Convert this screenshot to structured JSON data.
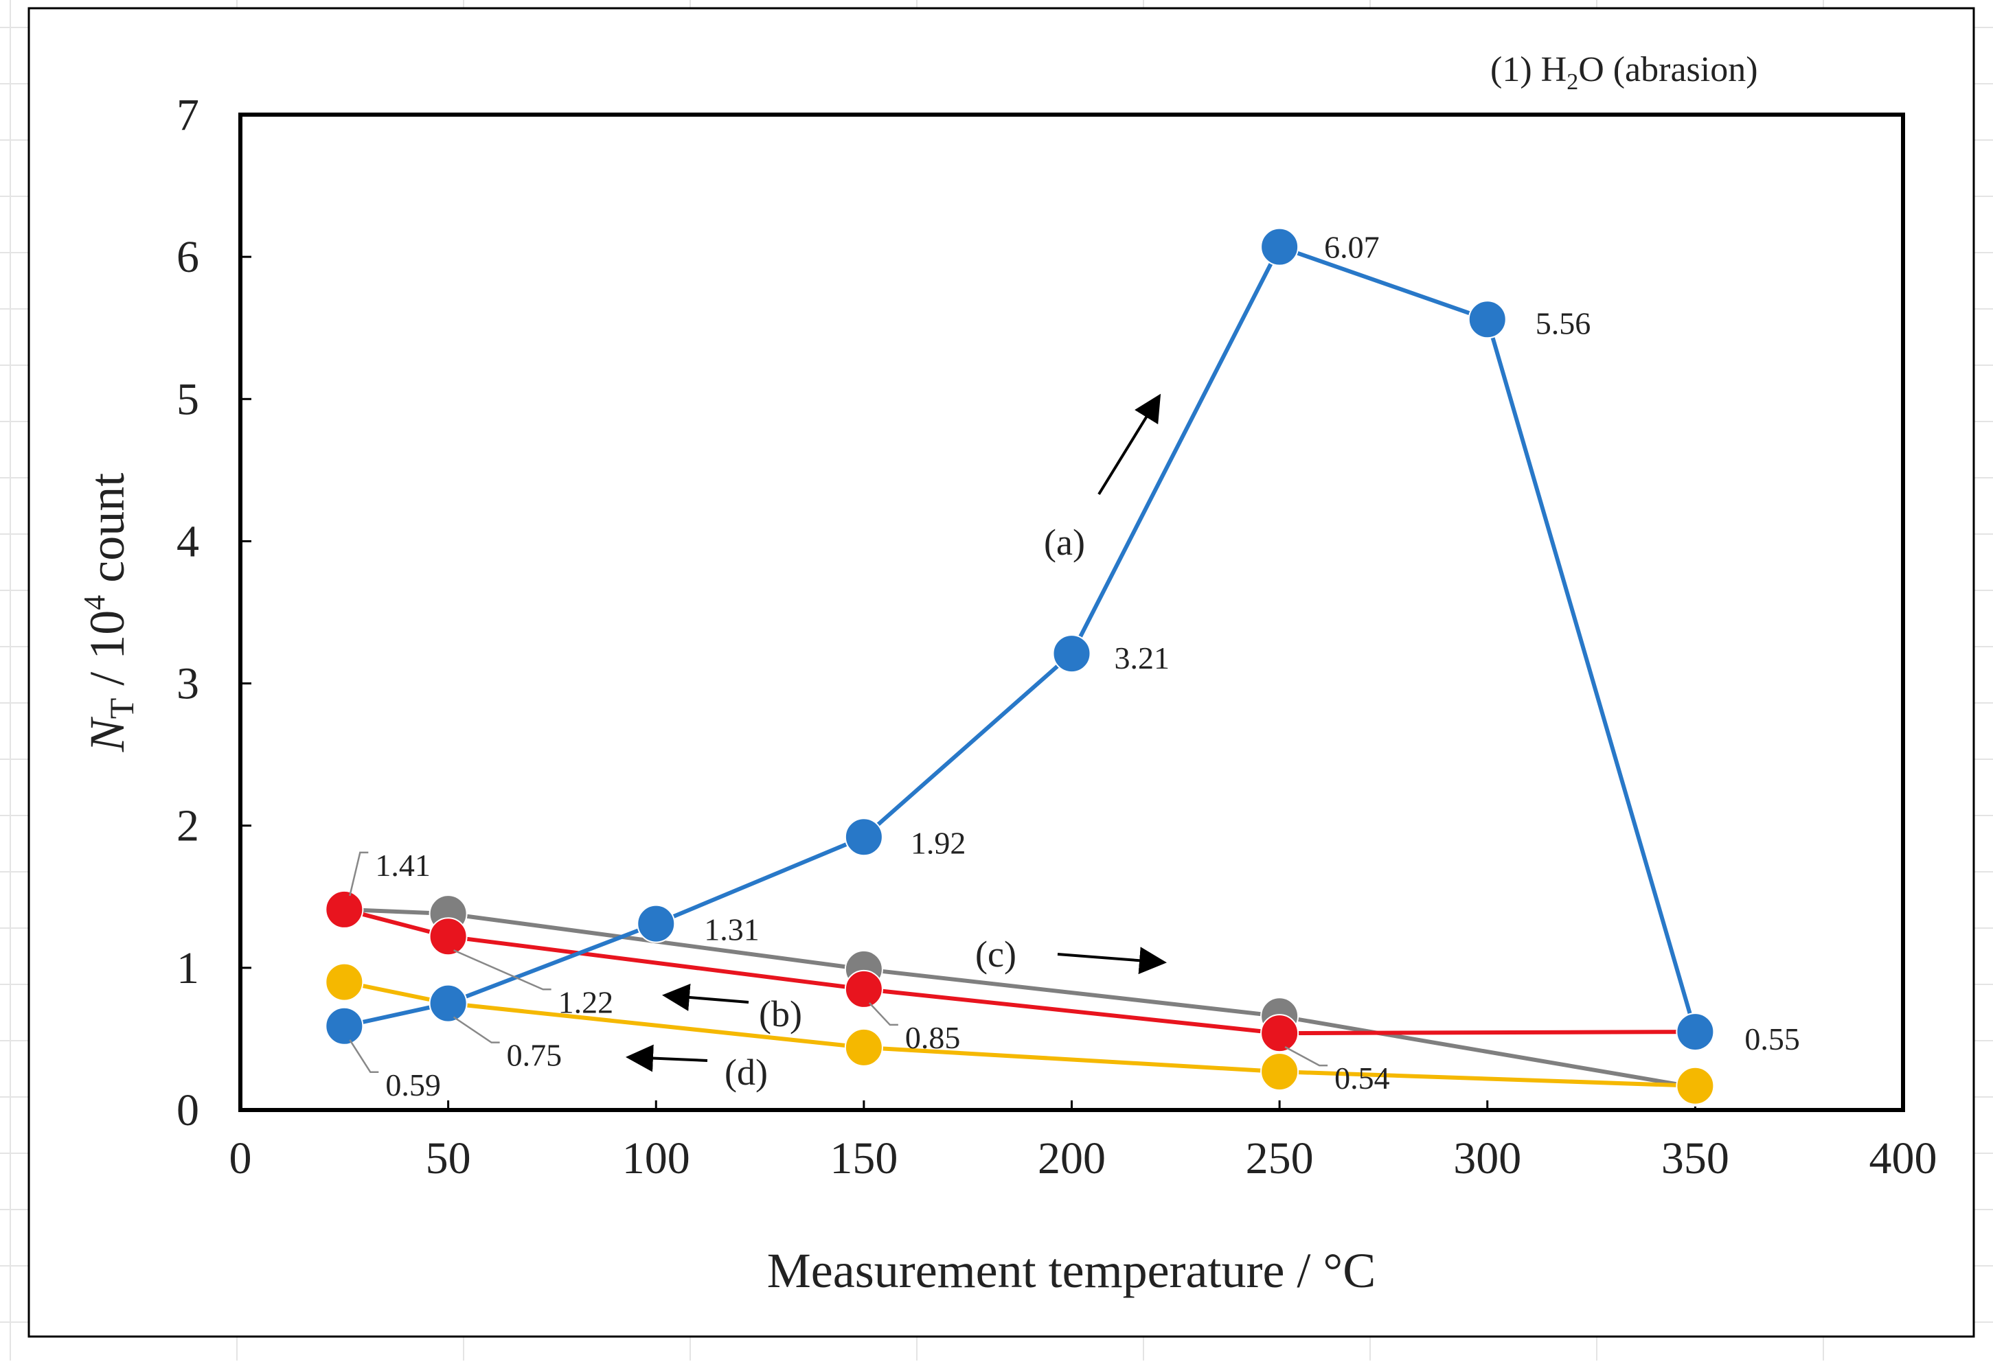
{
  "chart_data": {
    "type": "line",
    "panel_label": "(1) H",
    "panel_label_sub": "2",
    "panel_label_rest": "O (abrasion)",
    "xlabel": "Measurement temperature / °C",
    "ylabel_main": "N",
    "ylabel_sub": "T",
    "ylabel_mid": "  / 10",
    "ylabel_sup": "4",
    "ylabel_end": " count",
    "xlim": [
      0,
      400
    ],
    "ylim": [
      0,
      7
    ],
    "x_ticks": [
      0,
      50,
      100,
      150,
      200,
      250,
      300,
      350,
      400
    ],
    "y_ticks": [
      0,
      1,
      2,
      3,
      4,
      5,
      6,
      7
    ],
    "x_tick_labels": [
      "0",
      "50",
      "100",
      "150",
      "200",
      "250",
      "300",
      "350",
      "400"
    ],
    "y_tick_labels": [
      "0",
      "1",
      "2",
      "3",
      "4",
      "5",
      "6",
      "7"
    ],
    "grid": false,
    "series": [
      {
        "id": "a",
        "label": "(a)",
        "color": "#2878c8",
        "x": [
          25,
          50,
          100,
          150,
          200,
          250,
          300,
          350
        ],
        "y": [
          0.59,
          0.75,
          1.31,
          1.92,
          3.21,
          6.07,
          5.56,
          0.55
        ]
      },
      {
        "id": "b",
        "label": "(b)",
        "color": "#e8141e",
        "x": [
          350,
          250,
          150,
          50,
          25
        ],
        "y": [
          0.55,
          0.54,
          0.85,
          1.22,
          1.41
        ]
      },
      {
        "id": "c",
        "label": "(c)",
        "color": "#7f7f7f",
        "x": [
          25,
          50,
          150,
          250,
          350
        ],
        "y": [
          1.41,
          1.38,
          0.99,
          0.66,
          0.16
        ]
      },
      {
        "id": "d",
        "label": "(d)",
        "color": "#f5b800",
        "x": [
          350,
          250,
          150,
          50,
          25
        ],
        "y": [
          0.17,
          0.27,
          0.44,
          0.75,
          0.9
        ]
      }
    ],
    "data_labels": [
      {
        "text": "6.07",
        "x": 250,
        "y": 6.07
      },
      {
        "text": "5.56",
        "x": 300,
        "y": 5.56
      },
      {
        "text": "3.21",
        "x": 200,
        "y": 3.21
      },
      {
        "text": "1.92",
        "x": 150,
        "y": 1.92
      },
      {
        "text": "1.31",
        "x": 100,
        "y": 1.31
      },
      {
        "text": "1.41",
        "x": 25,
        "y": 1.41
      },
      {
        "text": "1.22",
        "x": 50,
        "y": 1.22
      },
      {
        "text": "0.85",
        "x": 150,
        "y": 0.85
      },
      {
        "text": "0.75",
        "x": 50,
        "y": 0.75
      },
      {
        "text": "0.59",
        "x": 25,
        "y": 0.59
      },
      {
        "text": "0.54",
        "x": 250,
        "y": 0.54
      },
      {
        "text": "0.55",
        "x": 350,
        "y": 0.55
      }
    ],
    "annotations": [
      {
        "text": "(a)",
        "direction": "up-right"
      },
      {
        "text": "(b)",
        "direction": "left"
      },
      {
        "text": "(c)",
        "direction": "right"
      },
      {
        "text": "(d)",
        "direction": "left"
      }
    ]
  }
}
